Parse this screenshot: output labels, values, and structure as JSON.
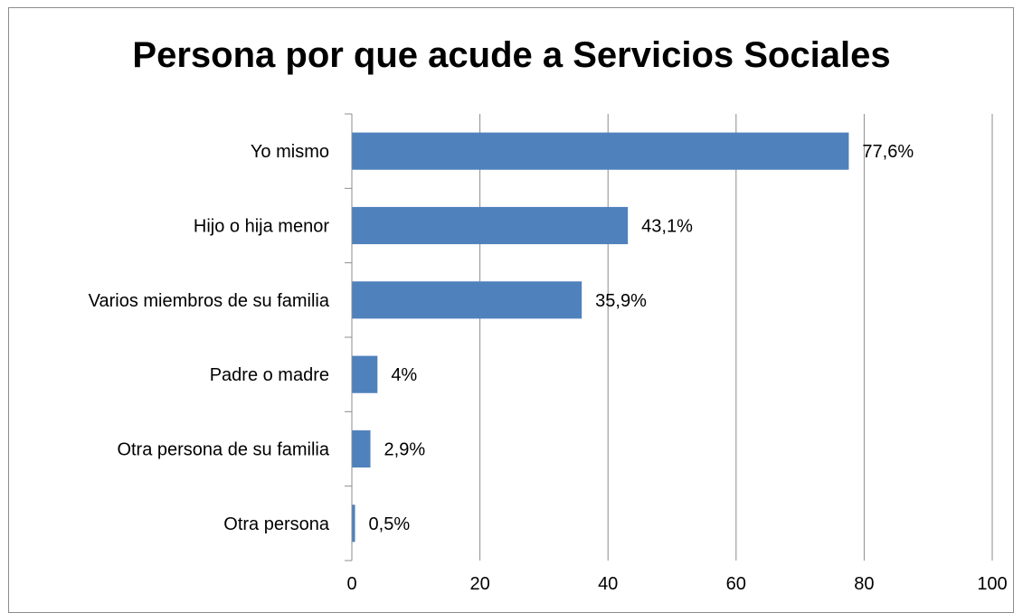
{
  "chart_data": {
    "type": "bar",
    "orientation": "horizontal",
    "title": "Persona por que acude a Servicios Sociales",
    "categories": [
      "Yo mismo",
      "Hijo o hija menor",
      "Varios miembros de su familia",
      "Padre o madre",
      "Otra persona de su familia",
      "Otra persona"
    ],
    "values": [
      77.6,
      43.1,
      35.9,
      4,
      2.9,
      0.5
    ],
    "data_labels": [
      "77,6%",
      "43,1%",
      "35,9%",
      "4%",
      "2,9%",
      "0,5%"
    ],
    "xlim": [
      0,
      100
    ],
    "xticks": [
      0,
      20,
      40,
      60,
      80,
      100
    ],
    "xtick_labels": [
      "0",
      "20",
      "40",
      "60",
      "80",
      "100"
    ],
    "grid": "vertical",
    "legend": "none",
    "bar_color": "#4f81bd"
  }
}
